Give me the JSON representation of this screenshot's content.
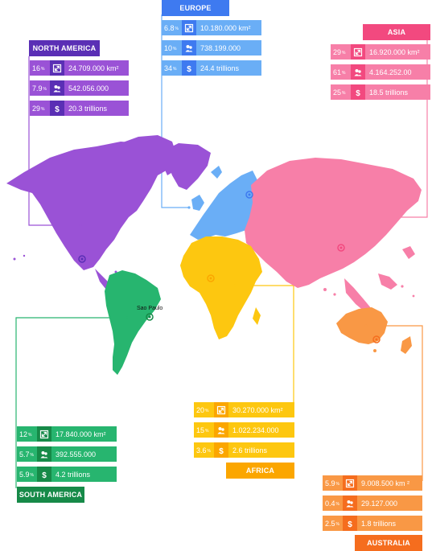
{
  "colors": {
    "north_america": "#9a52d6",
    "north_america_title": "#5a2fb5",
    "europe": "#6aaef6",
    "europe_title": "#3e7af0",
    "asia": "#f77fa8",
    "asia_title": "#f2497f",
    "africa": "#fdc710",
    "africa_title": "#fba600",
    "south_america": "#27b56f",
    "south_america_title": "#168a48",
    "australia": "#f99845",
    "australia_title": "#f56d1e"
  },
  "icons": {
    "area": "area-expand-icon",
    "population": "people-icon",
    "gdp": "dollar-icon"
  },
  "city": {
    "name": "Sao Paulo"
  },
  "continents": {
    "north_america": {
      "title": "NORTH AMERICA",
      "rows": [
        {
          "pct": "16",
          "unit": "%",
          "value": "24.709.000 km²"
        },
        {
          "pct": "7.9",
          "unit": "%",
          "value": "542.056.000"
        },
        {
          "pct": "29",
          "unit": "%",
          "value": "20.3 trillions"
        }
      ]
    },
    "europe": {
      "title": "EUROPE",
      "rows": [
        {
          "pct": "6.8",
          "unit": "%",
          "value": "10.180.000 km²"
        },
        {
          "pct": "10",
          "unit": "%",
          "value": "738.199.000"
        },
        {
          "pct": "34",
          "unit": "%",
          "value": "24.4 trillions"
        }
      ]
    },
    "asia": {
      "title": "ASIA",
      "rows": [
        {
          "pct": "29",
          "unit": "%",
          "value": "16.920.000 km²"
        },
        {
          "pct": "61",
          "unit": "%",
          "value": "4.164.252.00"
        },
        {
          "pct": "25",
          "unit": "%",
          "value": "18.5 trillions"
        }
      ]
    },
    "africa": {
      "title": "AFRICA",
      "rows": [
        {
          "pct": "20",
          "unit": "%",
          "value": "30.270.000 km²"
        },
        {
          "pct": "15",
          "unit": "%",
          "value": "1.022.234.000"
        },
        {
          "pct": "3.6",
          "unit": "%",
          "value": "2.6 trillions"
        }
      ]
    },
    "south_america": {
      "title": "SOUTH AMERICA",
      "rows": [
        {
          "pct": "12",
          "unit": "%",
          "value": "17.840.000 km²"
        },
        {
          "pct": "5.7",
          "unit": "%",
          "value": "392.555.000"
        },
        {
          "pct": "5.9",
          "unit": "%",
          "value": "4.2 trillions"
        }
      ]
    },
    "australia": {
      "title": "AUSTRALIA",
      "rows": [
        {
          "pct": "5.9",
          "unit": "%",
          "value": "9.008.500 km ²"
        },
        {
          "pct": "0.4",
          "unit": "%",
          "value": "29.127.000"
        },
        {
          "pct": "2.5",
          "unit": "%",
          "value": "1.8 trillions"
        }
      ]
    }
  }
}
